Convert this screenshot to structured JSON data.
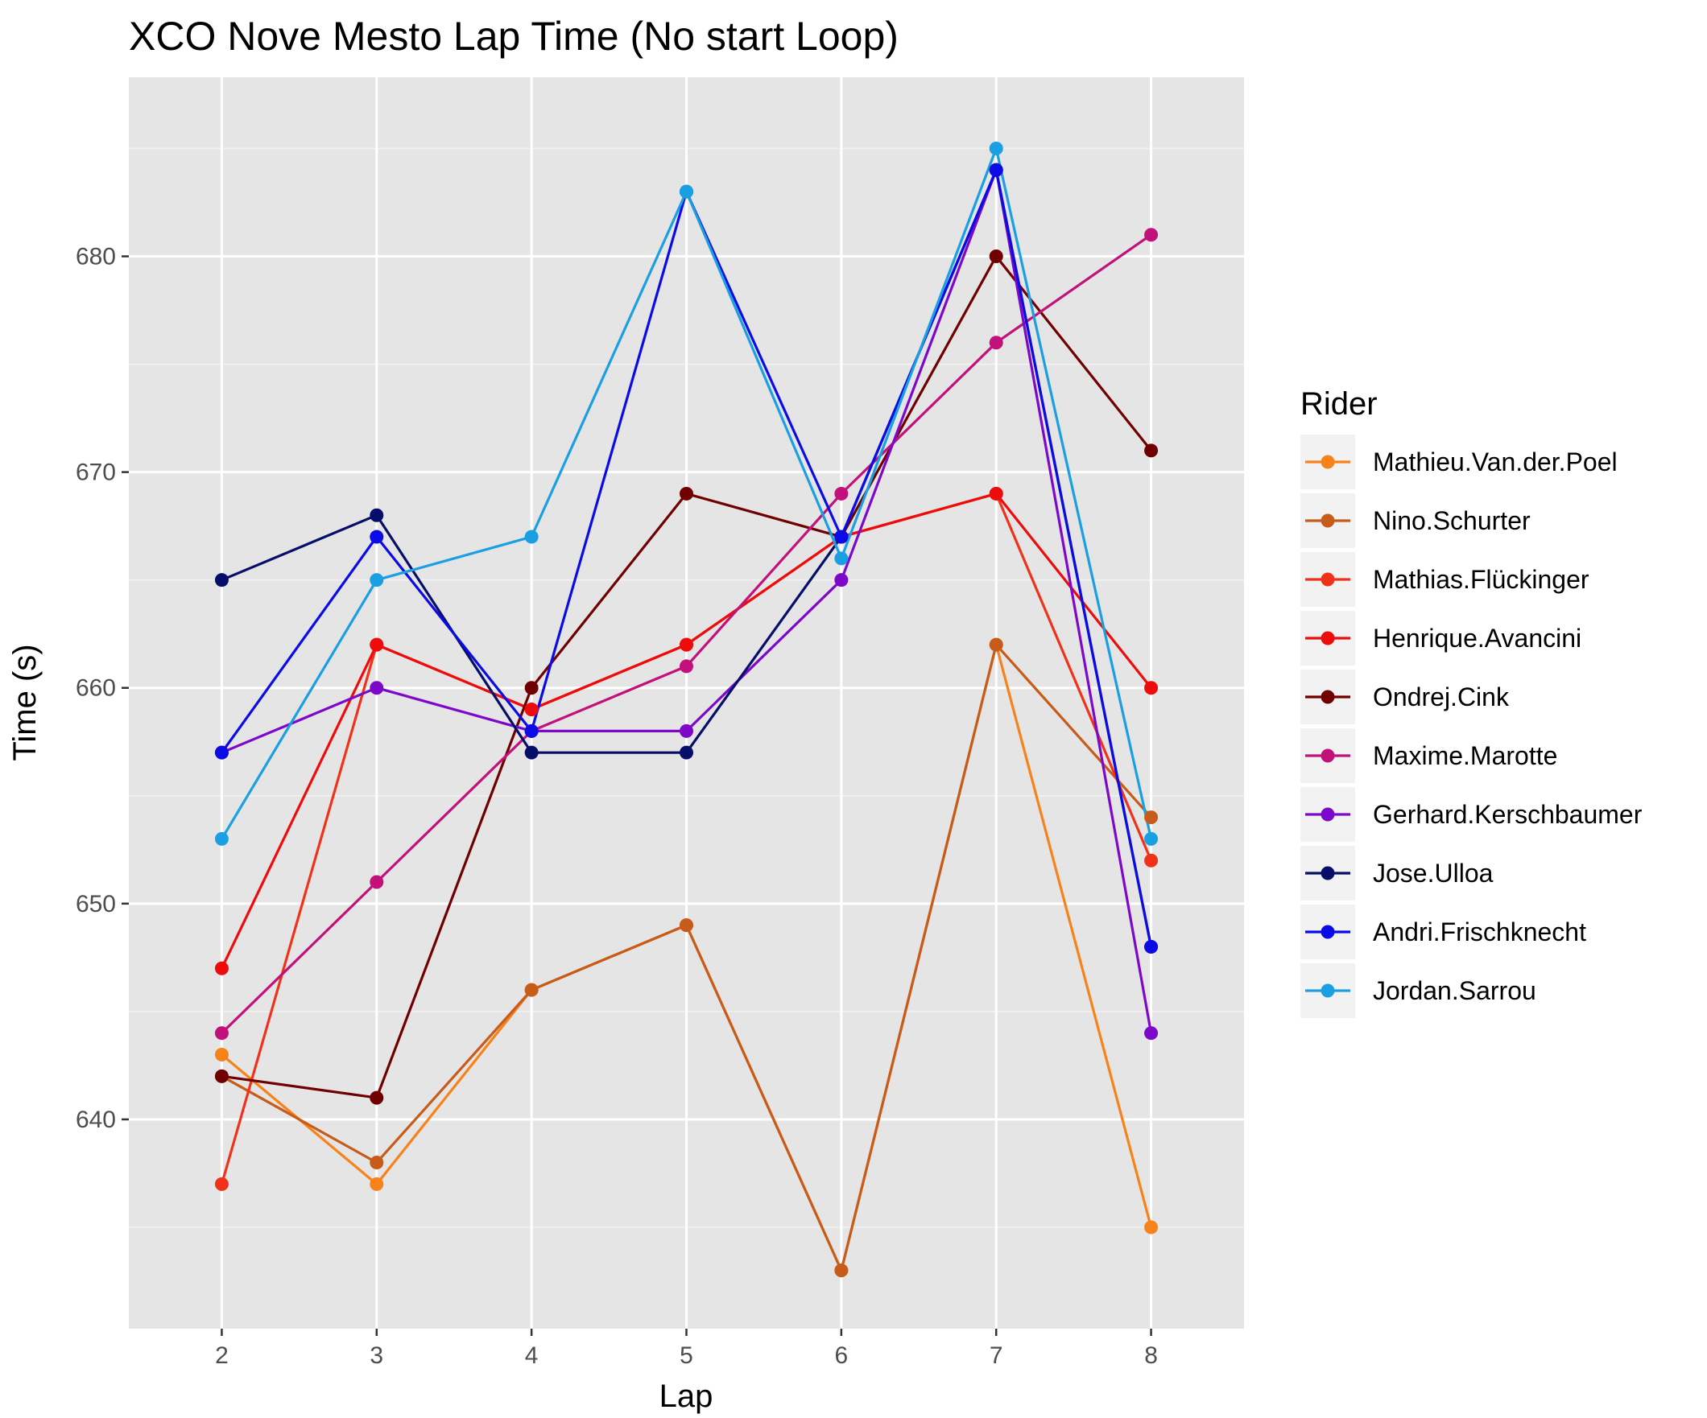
{
  "chart_data": {
    "type": "line",
    "title": "XCO Nove Mesto Lap Time (No start Loop)",
    "xlabel": "Lap",
    "ylabel": "Time (s)",
    "x": [
      2,
      3,
      4,
      5,
      6,
      7,
      8
    ],
    "xlim": [
      1.4,
      8.6
    ],
    "ylim": [
      630.3,
      688.3
    ],
    "y_ticks": [
      640,
      650,
      660,
      670,
      680
    ],
    "y_minor_ticks": [
      635,
      645,
      655,
      665,
      675,
      685
    ],
    "grid": true,
    "legend": {
      "title": "Rider",
      "position": "right"
    },
    "series": [
      {
        "name": "Mathieu.Van.der.Poel",
        "color": "#F8821A",
        "values": [
          643,
          637,
          646,
          649,
          633,
          662,
          635
        ]
      },
      {
        "name": "Nino.Schurter",
        "color": "#C75B1A",
        "values": [
          642,
          638,
          646,
          649,
          633,
          662,
          654
        ]
      },
      {
        "name": "Mathias.Flückinger",
        "color": "#F0321A",
        "values": [
          637,
          662,
          659,
          662,
          667,
          669,
          652
        ]
      },
      {
        "name": "Henrique.Avancini",
        "color": "#EE0B0B",
        "values": [
          647,
          662,
          659,
          662,
          667,
          669,
          660
        ]
      },
      {
        "name": "Ondrej.Cink",
        "color": "#700000",
        "values": [
          642,
          641,
          660,
          669,
          667,
          680,
          671
        ]
      },
      {
        "name": "Maxime.Marotte",
        "color": "#C2117B",
        "values": [
          644,
          651,
          658,
          661,
          669,
          676,
          681
        ]
      },
      {
        "name": "Gerhard.Kerschbaumer",
        "color": "#7D08C9",
        "values": [
          657,
          660,
          658,
          658,
          665,
          684,
          644
        ]
      },
      {
        "name": "Jose.Ulloa",
        "color": "#070E6A",
        "values": [
          665,
          668,
          657,
          657,
          667,
          684,
          648
        ]
      },
      {
        "name": "Andri.Frischknecht",
        "color": "#0B0BE6",
        "values": [
          657,
          667,
          658,
          683,
          667,
          684,
          648
        ]
      },
      {
        "name": "Jordan.Sarrou",
        "color": "#1B9FE3",
        "values": [
          653,
          665,
          667,
          683,
          666,
          685,
          653
        ]
      }
    ]
  }
}
